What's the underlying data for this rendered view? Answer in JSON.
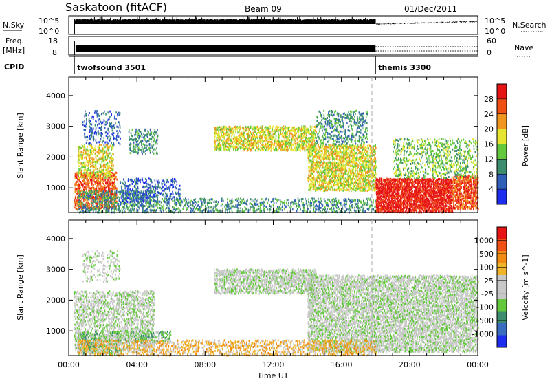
{
  "header": {
    "station": "Saskatoon (fitACF)",
    "beam": "Beam 09",
    "date": "01/Dec/2011"
  },
  "top_panels": {
    "nsky_label": "N.Sky",
    "nsky_ticks": [
      "10^5",
      "10^0"
    ],
    "nsearch_label": "N.Search",
    "nsearch_ticks": [
      "10^5",
      "10^0"
    ],
    "freq_label_1": "Freq.",
    "freq_label_2": "[MHz]",
    "freq_ticks": [
      "18",
      "8"
    ],
    "nave_label": "Nave",
    "nave_ticks": [
      "60",
      "0"
    ],
    "cpid_label": "CPID",
    "cpid_segments": [
      {
        "name": "twofsound 3501",
        "start_hour": 0.33
      },
      {
        "name": "themis 3300",
        "start_hour": 18.0
      }
    ]
  },
  "chart_data": [
    {
      "type": "heatmap",
      "title": "",
      "ylabel": "Slant Range [km]",
      "yticks": [
        "1000",
        "2000",
        "3000",
        "4000"
      ],
      "ylim": [
        200,
        4600
      ],
      "xlim_hours": [
        0,
        24
      ],
      "colorbar_label": "Power [dB]",
      "colorbar_ticks": [
        "4",
        "8",
        "12",
        "16",
        "20",
        "24",
        "28"
      ],
      "colorbar_colors": [
        "#1e2cf0",
        "#2f5fb6",
        "#3c8c6e",
        "#64c83c",
        "#e6e632",
        "#f0961e",
        "#f05014",
        "#e61414"
      ],
      "scatter_regions": [
        {
          "t0": 0.3,
          "t1": 2.8,
          "r0": 300,
          "r1": 1500,
          "level": 6,
          "density": 0.55
        },
        {
          "t0": 0.5,
          "t1": 2.6,
          "r0": 1300,
          "r1": 2400,
          "level": 4,
          "density": 0.45
        },
        {
          "t0": 0.5,
          "t1": 5.0,
          "r0": 200,
          "r1": 900,
          "level": 2,
          "density": 0.4
        },
        {
          "t0": 0.8,
          "t1": 3.0,
          "r0": 2400,
          "r1": 3500,
          "level": 1,
          "density": 0.22
        },
        {
          "t0": 3.0,
          "t1": 6.5,
          "r0": 500,
          "r1": 1300,
          "level": 1,
          "density": 0.3
        },
        {
          "t0": 3.5,
          "t1": 5.2,
          "r0": 2100,
          "r1": 2900,
          "level": 2,
          "density": 0.28
        },
        {
          "t0": 8.5,
          "t1": 14.5,
          "r0": 2200,
          "r1": 3000,
          "level": 4,
          "density": 0.55
        },
        {
          "t0": 14.0,
          "t1": 18.0,
          "r0": 900,
          "r1": 2400,
          "level": 4,
          "density": 0.6
        },
        {
          "t0": 14.5,
          "t1": 17.5,
          "r0": 2400,
          "r1": 3500,
          "level": 2,
          "density": 0.3
        },
        {
          "t0": 5.0,
          "t1": 18.0,
          "r0": 200,
          "r1": 650,
          "level": 2,
          "density": 0.3
        },
        {
          "t0": 18.0,
          "t1": 22.5,
          "r0": 200,
          "r1": 1300,
          "level": 7,
          "density": 0.85
        },
        {
          "t0": 22.5,
          "t1": 24.0,
          "r0": 300,
          "r1": 1400,
          "level": 6,
          "density": 0.7
        },
        {
          "t0": 19.0,
          "t1": 24.0,
          "r0": 1300,
          "r1": 2600,
          "level": 3,
          "density": 0.25
        }
      ]
    },
    {
      "type": "heatmap",
      "title": "",
      "ylabel": "Slant Range [km]",
      "yticks": [
        "1000",
        "2000",
        "3000",
        "4000"
      ],
      "ylim": [
        200,
        4600
      ],
      "xlim_hours": [
        0,
        24
      ],
      "xticks": [
        "00:00",
        "04:00",
        "08:00",
        "12:00",
        "16:00",
        "20:00",
        "00:00"
      ],
      "xlabel": "Time UT",
      "colorbar_label": "Velocity [m s^-1]",
      "colorbar_ticks": [
        "1000",
        "500",
        "100",
        "25",
        "-25",
        "-100",
        "-500",
        "-1000"
      ],
      "colorbar_colors": [
        "#1e2cf0",
        "#3a6cc0",
        "#3c8c6e",
        "#64c83c",
        "#c8c8c8",
        "#c8c8c8",
        "#f0b428",
        "#f08c14",
        "#f05014",
        "#e61414"
      ],
      "scatter_regions": [
        {
          "t0": 0.3,
          "t1": 5.0,
          "r0": 300,
          "r1": 2300,
          "level": 4,
          "density": 0.45
        },
        {
          "t0": 0.5,
          "t1": 3.0,
          "r0": 200,
          "r1": 1000,
          "level": 3,
          "density": 0.35
        },
        {
          "t0": 3.0,
          "t1": 6.0,
          "r0": 600,
          "r1": 1000,
          "level": 3,
          "density": 0.35
        },
        {
          "t0": 8.5,
          "t1": 14.5,
          "r0": 2200,
          "r1": 3000,
          "level": 4,
          "density": 0.6
        },
        {
          "t0": 14.0,
          "t1": 24.0,
          "r0": 300,
          "r1": 2800,
          "level": 4,
          "density": 0.6
        },
        {
          "t0": 0.5,
          "t1": 18.0,
          "r0": 200,
          "r1": 700,
          "level": 6,
          "density": 0.35
        },
        {
          "t0": 0.8,
          "t1": 3.0,
          "r0": 2600,
          "r1": 3600,
          "level": 4,
          "density": 0.2
        }
      ]
    }
  ]
}
